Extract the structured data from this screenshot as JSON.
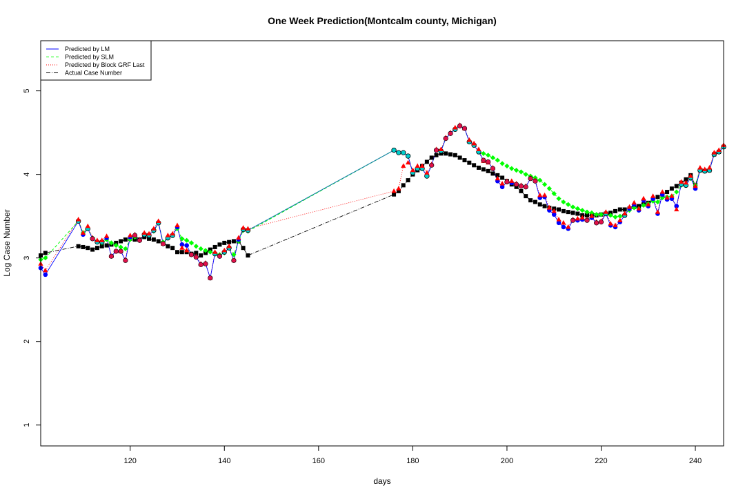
{
  "chart_data": {
    "type": "line",
    "title": "One Week Prediction(Montcalm county, Michigan)",
    "xlabel": "days",
    "ylabel": "Log Case Number",
    "xlim": [
      101,
      246
    ],
    "ylim": [
      0.75,
      5.6
    ],
    "xticks": [
      120,
      140,
      160,
      180,
      200,
      220,
      240
    ],
    "yticks": [
      1,
      2,
      3,
      4,
      5
    ],
    "legend_position": "top-left",
    "colors": {
      "lm": "#0000ff",
      "slm": "#00ff00",
      "grf": "#ff0000",
      "actual": "#000000",
      "cyan_points": "#00cdcd"
    },
    "legend": [
      {
        "label": "Predicted by LM",
        "color": "#0000ff",
        "dash": ""
      },
      {
        "label": "Predicted by SLM",
        "color": "#00ff00",
        "dash": "4,3"
      },
      {
        "label": "Predicted by Block GRF Last",
        "color": "#ff0000",
        "dash": "1,2"
      },
      {
        "label": "Actual Case Number",
        "color": "#000000",
        "dash": "6,2,1,2"
      }
    ],
    "series": [
      {
        "name": "Predicted by LM",
        "x": [
          101,
          102,
          109,
          110,
          111,
          112,
          113,
          114,
          115,
          116,
          117,
          118,
          119,
          120,
          121,
          122,
          123,
          124,
          125,
          126,
          127,
          128,
          129,
          130,
          131,
          132,
          133,
          134,
          135,
          136,
          137,
          138,
          139,
          140,
          141,
          142,
          143,
          144,
          145,
          176,
          177,
          178,
          179,
          180,
          181,
          182,
          183,
          184,
          185,
          186,
          187,
          188,
          189,
          190,
          191,
          192,
          193,
          194,
          195,
          196,
          197,
          198,
          199,
          200,
          201,
          202,
          203,
          204,
          205,
          206,
          207,
          208,
          209,
          210,
          211,
          212,
          213,
          214,
          215,
          216,
          217,
          218,
          219,
          220,
          221,
          222,
          223,
          224,
          225,
          226,
          227,
          228,
          229,
          230,
          231,
          232,
          233,
          234,
          235,
          236,
          237,
          238,
          239,
          240,
          241,
          242,
          243,
          244,
          245,
          246
        ],
        "y": [
          2.88,
          2.8,
          3.44,
          3.28,
          3.35,
          3.23,
          3.19,
          3.19,
          3.24,
          3.02,
          3.08,
          3.08,
          2.97,
          3.25,
          3.27,
          3.21,
          3.28,
          3.27,
          3.33,
          3.42,
          3.17,
          3.24,
          3.27,
          3.37,
          3.16,
          3.15,
          3.04,
          3.01,
          2.92,
          2.93,
          2.76,
          3.05,
          3.02,
          3.07,
          3.12,
          2.97,
          3.22,
          3.34,
          3.33,
          4.29,
          4.26,
          4.26,
          4.22,
          4.02,
          4.07,
          4.07,
          3.98,
          4.11,
          4.29,
          4.28,
          4.43,
          4.49,
          4.54,
          4.58,
          4.55,
          4.39,
          4.35,
          4.27,
          4.17,
          4.15,
          4.07,
          3.92,
          3.85,
          3.91,
          3.9,
          3.88,
          3.86,
          3.85,
          3.95,
          3.92,
          3.72,
          3.73,
          3.57,
          3.52,
          3.42,
          3.37,
          3.35,
          3.45,
          3.45,
          3.46,
          3.45,
          3.48,
          3.42,
          3.43,
          3.53,
          3.39,
          3.37,
          3.43,
          3.51,
          3.59,
          3.64,
          3.57,
          3.69,
          3.62,
          3.71,
          3.53,
          3.76,
          3.7,
          3.71,
          3.62,
          3.88,
          3.87,
          3.96,
          3.83,
          4.05,
          4.04,
          4.05,
          4.24,
          4.27,
          4.33
        ]
      },
      {
        "name": "Predicted by SLM",
        "x": [
          101,
          102,
          109,
          110,
          111,
          112,
          113,
          114,
          115,
          116,
          117,
          118,
          119,
          120,
          121,
          122,
          123,
          124,
          125,
          126,
          127,
          128,
          129,
          130,
          131,
          132,
          133,
          134,
          135,
          136,
          137,
          138,
          139,
          140,
          141,
          142,
          143,
          144,
          145,
          176,
          177,
          178,
          179,
          180,
          181,
          182,
          183,
          184,
          185,
          186,
          187,
          188,
          189,
          190,
          191,
          192,
          193,
          194,
          195,
          196,
          197,
          198,
          199,
          200,
          201,
          202,
          203,
          204,
          205,
          206,
          207,
          208,
          209,
          210,
          211,
          212,
          213,
          214,
          215,
          216,
          217,
          218,
          219,
          220,
          221,
          222,
          223,
          224,
          225,
          226,
          227,
          228,
          229,
          230,
          231,
          232,
          233,
          234,
          235,
          236,
          237,
          238,
          239,
          240,
          241,
          242,
          243,
          244,
          245,
          246
        ],
        "y": [
          2.98,
          3.0,
          3.44,
          3.3,
          3.35,
          3.24,
          3.2,
          3.18,
          3.22,
          3.18,
          3.15,
          3.13,
          3.11,
          3.22,
          3.25,
          3.21,
          3.28,
          3.27,
          3.32,
          3.42,
          3.19,
          3.24,
          3.27,
          3.35,
          3.23,
          3.21,
          3.18,
          3.14,
          3.11,
          3.09,
          3.07,
          3.05,
          3.04,
          3.06,
          3.12,
          3.04,
          3.2,
          3.33,
          3.32,
          4.29,
          4.26,
          4.26,
          4.22,
          4.02,
          4.07,
          4.07,
          3.98,
          4.11,
          4.29,
          4.28,
          4.43,
          4.49,
          4.54,
          4.58,
          4.55,
          4.39,
          4.35,
          4.27,
          4.25,
          4.23,
          4.2,
          4.17,
          4.13,
          4.1,
          4.07,
          4.05,
          4.03,
          4.0,
          3.98,
          3.96,
          3.93,
          3.88,
          3.83,
          3.77,
          3.71,
          3.67,
          3.64,
          3.61,
          3.59,
          3.57,
          3.55,
          3.54,
          3.52,
          3.52,
          3.53,
          3.51,
          3.49,
          3.5,
          3.52,
          3.57,
          3.6,
          3.59,
          3.63,
          3.65,
          3.68,
          3.67,
          3.72,
          3.73,
          3.74,
          3.79,
          3.87,
          3.88,
          3.95,
          3.87,
          4.05,
          4.04,
          4.05,
          4.24,
          4.27,
          4.33
        ]
      },
      {
        "name": "Predicted by Block GRF Last",
        "x": [
          101,
          102,
          109,
          110,
          111,
          112,
          113,
          114,
          115,
          116,
          117,
          118,
          119,
          120,
          121,
          122,
          123,
          124,
          125,
          126,
          127,
          128,
          129,
          130,
          131,
          132,
          133,
          134,
          135,
          136,
          137,
          138,
          139,
          140,
          141,
          142,
          143,
          144,
          145,
          176,
          177,
          178,
          179,
          180,
          181,
          182,
          183,
          184,
          185,
          186,
          187,
          188,
          189,
          190,
          191,
          192,
          193,
          194,
          195,
          196,
          197,
          198,
          199,
          200,
          201,
          202,
          203,
          204,
          205,
          206,
          207,
          208,
          209,
          210,
          211,
          212,
          213,
          214,
          215,
          216,
          217,
          218,
          219,
          220,
          221,
          222,
          223,
          224,
          225,
          226,
          227,
          228,
          229,
          230,
          231,
          232,
          233,
          234,
          235,
          236,
          237,
          238,
          239,
          240,
          241,
          242,
          243,
          244,
          245,
          246
        ],
        "y": [
          2.93,
          2.85,
          3.46,
          3.3,
          3.38,
          3.24,
          3.21,
          3.21,
          3.26,
          3.02,
          3.08,
          3.08,
          2.98,
          3.27,
          3.28,
          3.22,
          3.3,
          3.29,
          3.35,
          3.44,
          3.17,
          3.27,
          3.29,
          3.39,
          3.12,
          3.09,
          3.04,
          3.02,
          2.93,
          2.94,
          2.76,
          3.07,
          3.03,
          3.09,
          3.14,
          2.97,
          3.24,
          3.36,
          3.35,
          3.8,
          3.83,
          4.1,
          4.14,
          4.05,
          4.1,
          4.1,
          4.02,
          4.12,
          4.3,
          4.3,
          4.44,
          4.5,
          4.56,
          4.59,
          4.55,
          4.41,
          4.37,
          4.3,
          4.16,
          4.14,
          4.08,
          3.95,
          3.89,
          3.92,
          3.92,
          3.89,
          3.87,
          3.86,
          3.96,
          3.93,
          3.75,
          3.75,
          3.6,
          3.56,
          3.46,
          3.42,
          3.37,
          3.46,
          3.47,
          3.48,
          3.46,
          3.5,
          3.43,
          3.44,
          3.55,
          3.41,
          3.39,
          3.45,
          3.53,
          3.61,
          3.66,
          3.59,
          3.71,
          3.64,
          3.74,
          3.55,
          3.79,
          3.72,
          3.74,
          3.58,
          3.91,
          3.9,
          3.98,
          3.86,
          4.08,
          4.06,
          4.08,
          4.26,
          4.29,
          4.35
        ]
      },
      {
        "name": "Actual Case Number",
        "x": [
          101,
          102,
          109,
          110,
          111,
          112,
          113,
          114,
          115,
          116,
          117,
          118,
          119,
          120,
          121,
          122,
          123,
          124,
          125,
          126,
          127,
          128,
          129,
          130,
          131,
          132,
          133,
          134,
          135,
          136,
          137,
          138,
          139,
          140,
          141,
          142,
          143,
          144,
          145,
          176,
          177,
          178,
          179,
          180,
          181,
          182,
          183,
          184,
          185,
          186,
          187,
          188,
          189,
          190,
          191,
          192,
          193,
          194,
          195,
          196,
          197,
          198,
          199,
          200,
          201,
          202,
          203,
          204,
          205,
          206,
          207,
          208,
          209,
          210,
          211,
          212,
          213,
          214,
          215,
          216,
          217,
          218,
          219,
          220,
          221,
          222,
          223,
          224,
          225,
          226,
          227,
          228,
          229,
          230,
          231,
          232,
          233,
          234,
          235,
          236,
          237,
          238,
          239,
          240,
          241,
          242,
          243,
          244,
          245,
          246
        ],
        "y": [
          3.03,
          3.06,
          3.14,
          3.13,
          3.12,
          3.1,
          3.12,
          3.14,
          3.15,
          3.16,
          3.18,
          3.2,
          3.22,
          3.23,
          3.22,
          3.22,
          3.25,
          3.23,
          3.22,
          3.2,
          3.18,
          3.14,
          3.12,
          3.07,
          3.07,
          3.07,
          3.05,
          3.06,
          3.03,
          3.06,
          3.1,
          3.13,
          3.16,
          3.18,
          3.19,
          3.2,
          3.2,
          3.12,
          3.03,
          3.76,
          3.8,
          3.87,
          3.93,
          4.0,
          4.05,
          4.1,
          4.15,
          4.2,
          4.23,
          4.25,
          4.25,
          4.24,
          4.23,
          4.2,
          4.17,
          4.14,
          4.11,
          4.08,
          4.06,
          4.04,
          4.01,
          3.99,
          3.96,
          3.92,
          3.88,
          3.85,
          3.8,
          3.74,
          3.69,
          3.67,
          3.64,
          3.62,
          3.6,
          3.59,
          3.58,
          3.56,
          3.55,
          3.54,
          3.53,
          3.51,
          3.51,
          3.51,
          3.51,
          3.52,
          3.53,
          3.54,
          3.56,
          3.58,
          3.58,
          3.59,
          3.61,
          3.62,
          3.64,
          3.66,
          3.7,
          3.73,
          3.76,
          3.79,
          3.83,
          3.86,
          3.9,
          3.94,
          3.99,
          3.87,
          4.05,
          4.04,
          4.05,
          4.24,
          4.27,
          4.33
        ]
      }
    ]
  }
}
